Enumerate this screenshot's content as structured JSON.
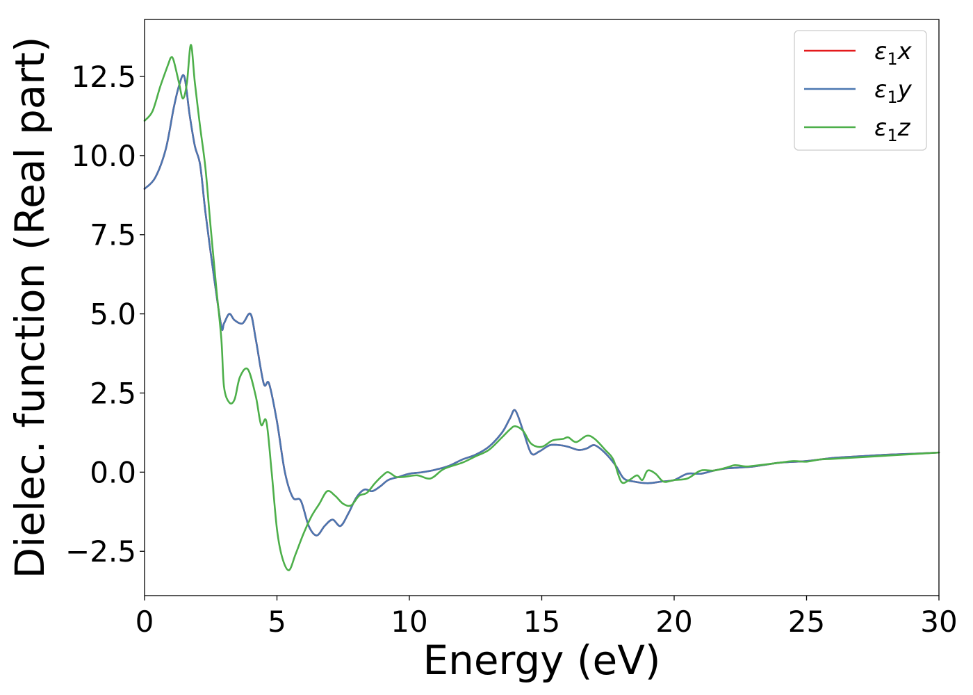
{
  "chart_data": {
    "type": "line",
    "title": "",
    "xlabel": "Energy (eV)",
    "ylabel": "Dielec. function (Real part)",
    "xlim": [
      0,
      30
    ],
    "ylim": [
      -3.9,
      14.3
    ],
    "xticks": [
      0,
      5,
      10,
      15,
      20,
      25,
      30
    ],
    "xtick_labels": [
      "0",
      "5",
      "10",
      "15",
      "20",
      "25",
      "30"
    ],
    "yticks": [
      -2.5,
      0.0,
      2.5,
      5.0,
      7.5,
      10.0,
      12.5
    ],
    "ytick_labels": [
      "−2.5",
      "0.0",
      "2.5",
      "5.0",
      "7.5",
      "10.0",
      "12.5"
    ],
    "grid": false,
    "legend_position": "top-right",
    "series": [
      {
        "name": "ε₁x",
        "legend_base": "ε",
        "legend_sub": "1",
        "legend_suffix": "x",
        "color": "#e41a1c",
        "x": [
          0,
          0.4,
          0.8,
          1.1,
          1.3,
          1.5,
          1.7,
          1.9,
          2.1,
          2.3,
          2.6,
          2.9,
          3.0,
          3.2,
          3.4,
          3.7,
          4.0,
          4.2,
          4.5,
          4.7,
          5.0,
          5.3,
          5.6,
          5.9,
          6.2,
          6.5,
          6.8,
          7.1,
          7.4,
          7.7,
          8.0,
          8.3,
          8.6,
          8.9,
          9.2,
          9.6,
          10.0,
          10.5,
          11.0,
          11.5,
          12.0,
          12.5,
          13.0,
          13.5,
          13.8,
          14.0,
          14.3,
          14.6,
          14.9,
          15.3,
          15.7,
          16.0,
          16.4,
          16.7,
          17.0,
          17.4,
          17.8,
          18.1,
          18.5,
          19.0,
          19.5,
          20.0,
          20.5,
          21.0,
          21.5,
          22.0,
          23.0,
          24.0,
          25.0,
          26.0,
          27.0,
          28.0,
          29.0,
          30.0
        ],
        "y": [
          8.95,
          9.3,
          10.2,
          11.5,
          12.2,
          12.5,
          11.3,
          10.3,
          9.7,
          8.2,
          6.3,
          4.6,
          4.7,
          5.0,
          4.8,
          4.7,
          5.0,
          4.2,
          2.8,
          2.8,
          1.6,
          0.0,
          -0.8,
          -0.9,
          -1.7,
          -2.0,
          -1.7,
          -1.5,
          -1.7,
          -1.3,
          -0.8,
          -0.55,
          -0.6,
          -0.45,
          -0.25,
          -0.15,
          -0.05,
          0.0,
          0.08,
          0.2,
          0.4,
          0.55,
          0.8,
          1.25,
          1.7,
          1.95,
          1.3,
          0.6,
          0.65,
          0.85,
          0.85,
          0.8,
          0.7,
          0.75,
          0.85,
          0.6,
          0.2,
          -0.2,
          -0.3,
          -0.35,
          -0.3,
          -0.25,
          -0.05,
          -0.05,
          0.05,
          0.12,
          0.18,
          0.3,
          0.35,
          0.45,
          0.5,
          0.55,
          0.58,
          0.62
        ]
      },
      {
        "name": "ε₁y",
        "legend_base": "ε",
        "legend_sub": "1",
        "legend_suffix": "y",
        "color": "#4a76b0",
        "x": [
          0,
          0.4,
          0.8,
          1.1,
          1.3,
          1.5,
          1.7,
          1.9,
          2.1,
          2.3,
          2.6,
          2.9,
          3.0,
          3.2,
          3.4,
          3.7,
          4.0,
          4.2,
          4.5,
          4.7,
          5.0,
          5.3,
          5.6,
          5.9,
          6.2,
          6.5,
          6.8,
          7.1,
          7.4,
          7.7,
          8.0,
          8.3,
          8.6,
          8.9,
          9.2,
          9.6,
          10.0,
          10.5,
          11.0,
          11.5,
          12.0,
          12.5,
          13.0,
          13.5,
          13.8,
          14.0,
          14.3,
          14.6,
          14.9,
          15.3,
          15.7,
          16.0,
          16.4,
          16.7,
          17.0,
          17.4,
          17.8,
          18.1,
          18.5,
          19.0,
          19.5,
          20.0,
          20.5,
          21.0,
          21.5,
          22.0,
          23.0,
          24.0,
          25.0,
          26.0,
          27.0,
          28.0,
          29.0,
          30.0
        ],
        "y": [
          8.95,
          9.3,
          10.2,
          11.5,
          12.2,
          12.5,
          11.3,
          10.3,
          9.7,
          8.2,
          6.3,
          4.6,
          4.7,
          5.0,
          4.8,
          4.7,
          5.0,
          4.2,
          2.8,
          2.8,
          1.6,
          0.0,
          -0.8,
          -0.9,
          -1.7,
          -2.0,
          -1.7,
          -1.5,
          -1.7,
          -1.3,
          -0.8,
          -0.55,
          -0.6,
          -0.45,
          -0.25,
          -0.15,
          -0.05,
          0.0,
          0.08,
          0.2,
          0.4,
          0.55,
          0.8,
          1.25,
          1.7,
          1.95,
          1.3,
          0.6,
          0.65,
          0.85,
          0.85,
          0.8,
          0.7,
          0.75,
          0.85,
          0.6,
          0.2,
          -0.2,
          -0.3,
          -0.35,
          -0.3,
          -0.25,
          -0.05,
          -0.05,
          0.05,
          0.12,
          0.18,
          0.3,
          0.35,
          0.45,
          0.5,
          0.55,
          0.58,
          0.62
        ]
      },
      {
        "name": "ε₁z",
        "legend_base": "ε",
        "legend_sub": "1",
        "legend_suffix": "z",
        "color": "#4daf4a",
        "x": [
          0,
          0.3,
          0.6,
          0.9,
          1.0,
          1.1,
          1.3,
          1.45,
          1.6,
          1.75,
          1.9,
          2.1,
          2.3,
          2.5,
          2.7,
          2.9,
          3.0,
          3.2,
          3.4,
          3.6,
          3.9,
          4.2,
          4.4,
          4.6,
          4.8,
          5.0,
          5.2,
          5.45,
          5.7,
          6.0,
          6.3,
          6.6,
          6.9,
          7.2,
          7.5,
          7.8,
          8.1,
          8.4,
          8.7,
          9.0,
          9.2,
          9.5,
          9.8,
          10.3,
          10.8,
          11.3,
          12.0,
          12.5,
          13.0,
          13.5,
          13.8,
          14.0,
          14.3,
          14.6,
          15.0,
          15.4,
          15.8,
          16.0,
          16.3,
          16.7,
          17.0,
          17.4,
          17.7,
          18.0,
          18.3,
          18.6,
          18.8,
          19.0,
          19.3,
          19.6,
          20.0,
          20.5,
          21.0,
          21.5,
          22.0,
          22.3,
          22.7,
          23.0,
          24.0,
          24.5,
          25.0,
          25.5,
          26.0,
          27.0,
          28.0,
          29.0,
          30.0
        ],
        "y": [
          11.1,
          11.4,
          12.2,
          12.9,
          13.1,
          13.0,
          12.3,
          11.8,
          12.3,
          13.5,
          12.3,
          10.9,
          9.6,
          7.7,
          5.9,
          4.2,
          2.7,
          2.2,
          2.3,
          3.0,
          3.25,
          2.4,
          1.5,
          1.6,
          0.0,
          -1.8,
          -2.7,
          -3.1,
          -2.6,
          -1.95,
          -1.4,
          -1.0,
          -0.6,
          -0.75,
          -1.0,
          -1.05,
          -0.75,
          -0.65,
          -0.35,
          -0.1,
          0.0,
          -0.15,
          -0.15,
          -0.1,
          -0.2,
          0.1,
          0.3,
          0.5,
          0.7,
          1.1,
          1.35,
          1.45,
          1.3,
          0.9,
          0.8,
          1.0,
          1.05,
          1.1,
          0.95,
          1.15,
          1.05,
          0.7,
          0.4,
          -0.3,
          -0.25,
          -0.1,
          -0.25,
          0.05,
          -0.05,
          -0.3,
          -0.25,
          -0.2,
          0.05,
          0.05,
          0.15,
          0.22,
          0.18,
          0.2,
          0.3,
          0.35,
          0.33,
          0.4,
          0.42,
          0.47,
          0.52,
          0.57,
          0.62
        ]
      }
    ]
  }
}
